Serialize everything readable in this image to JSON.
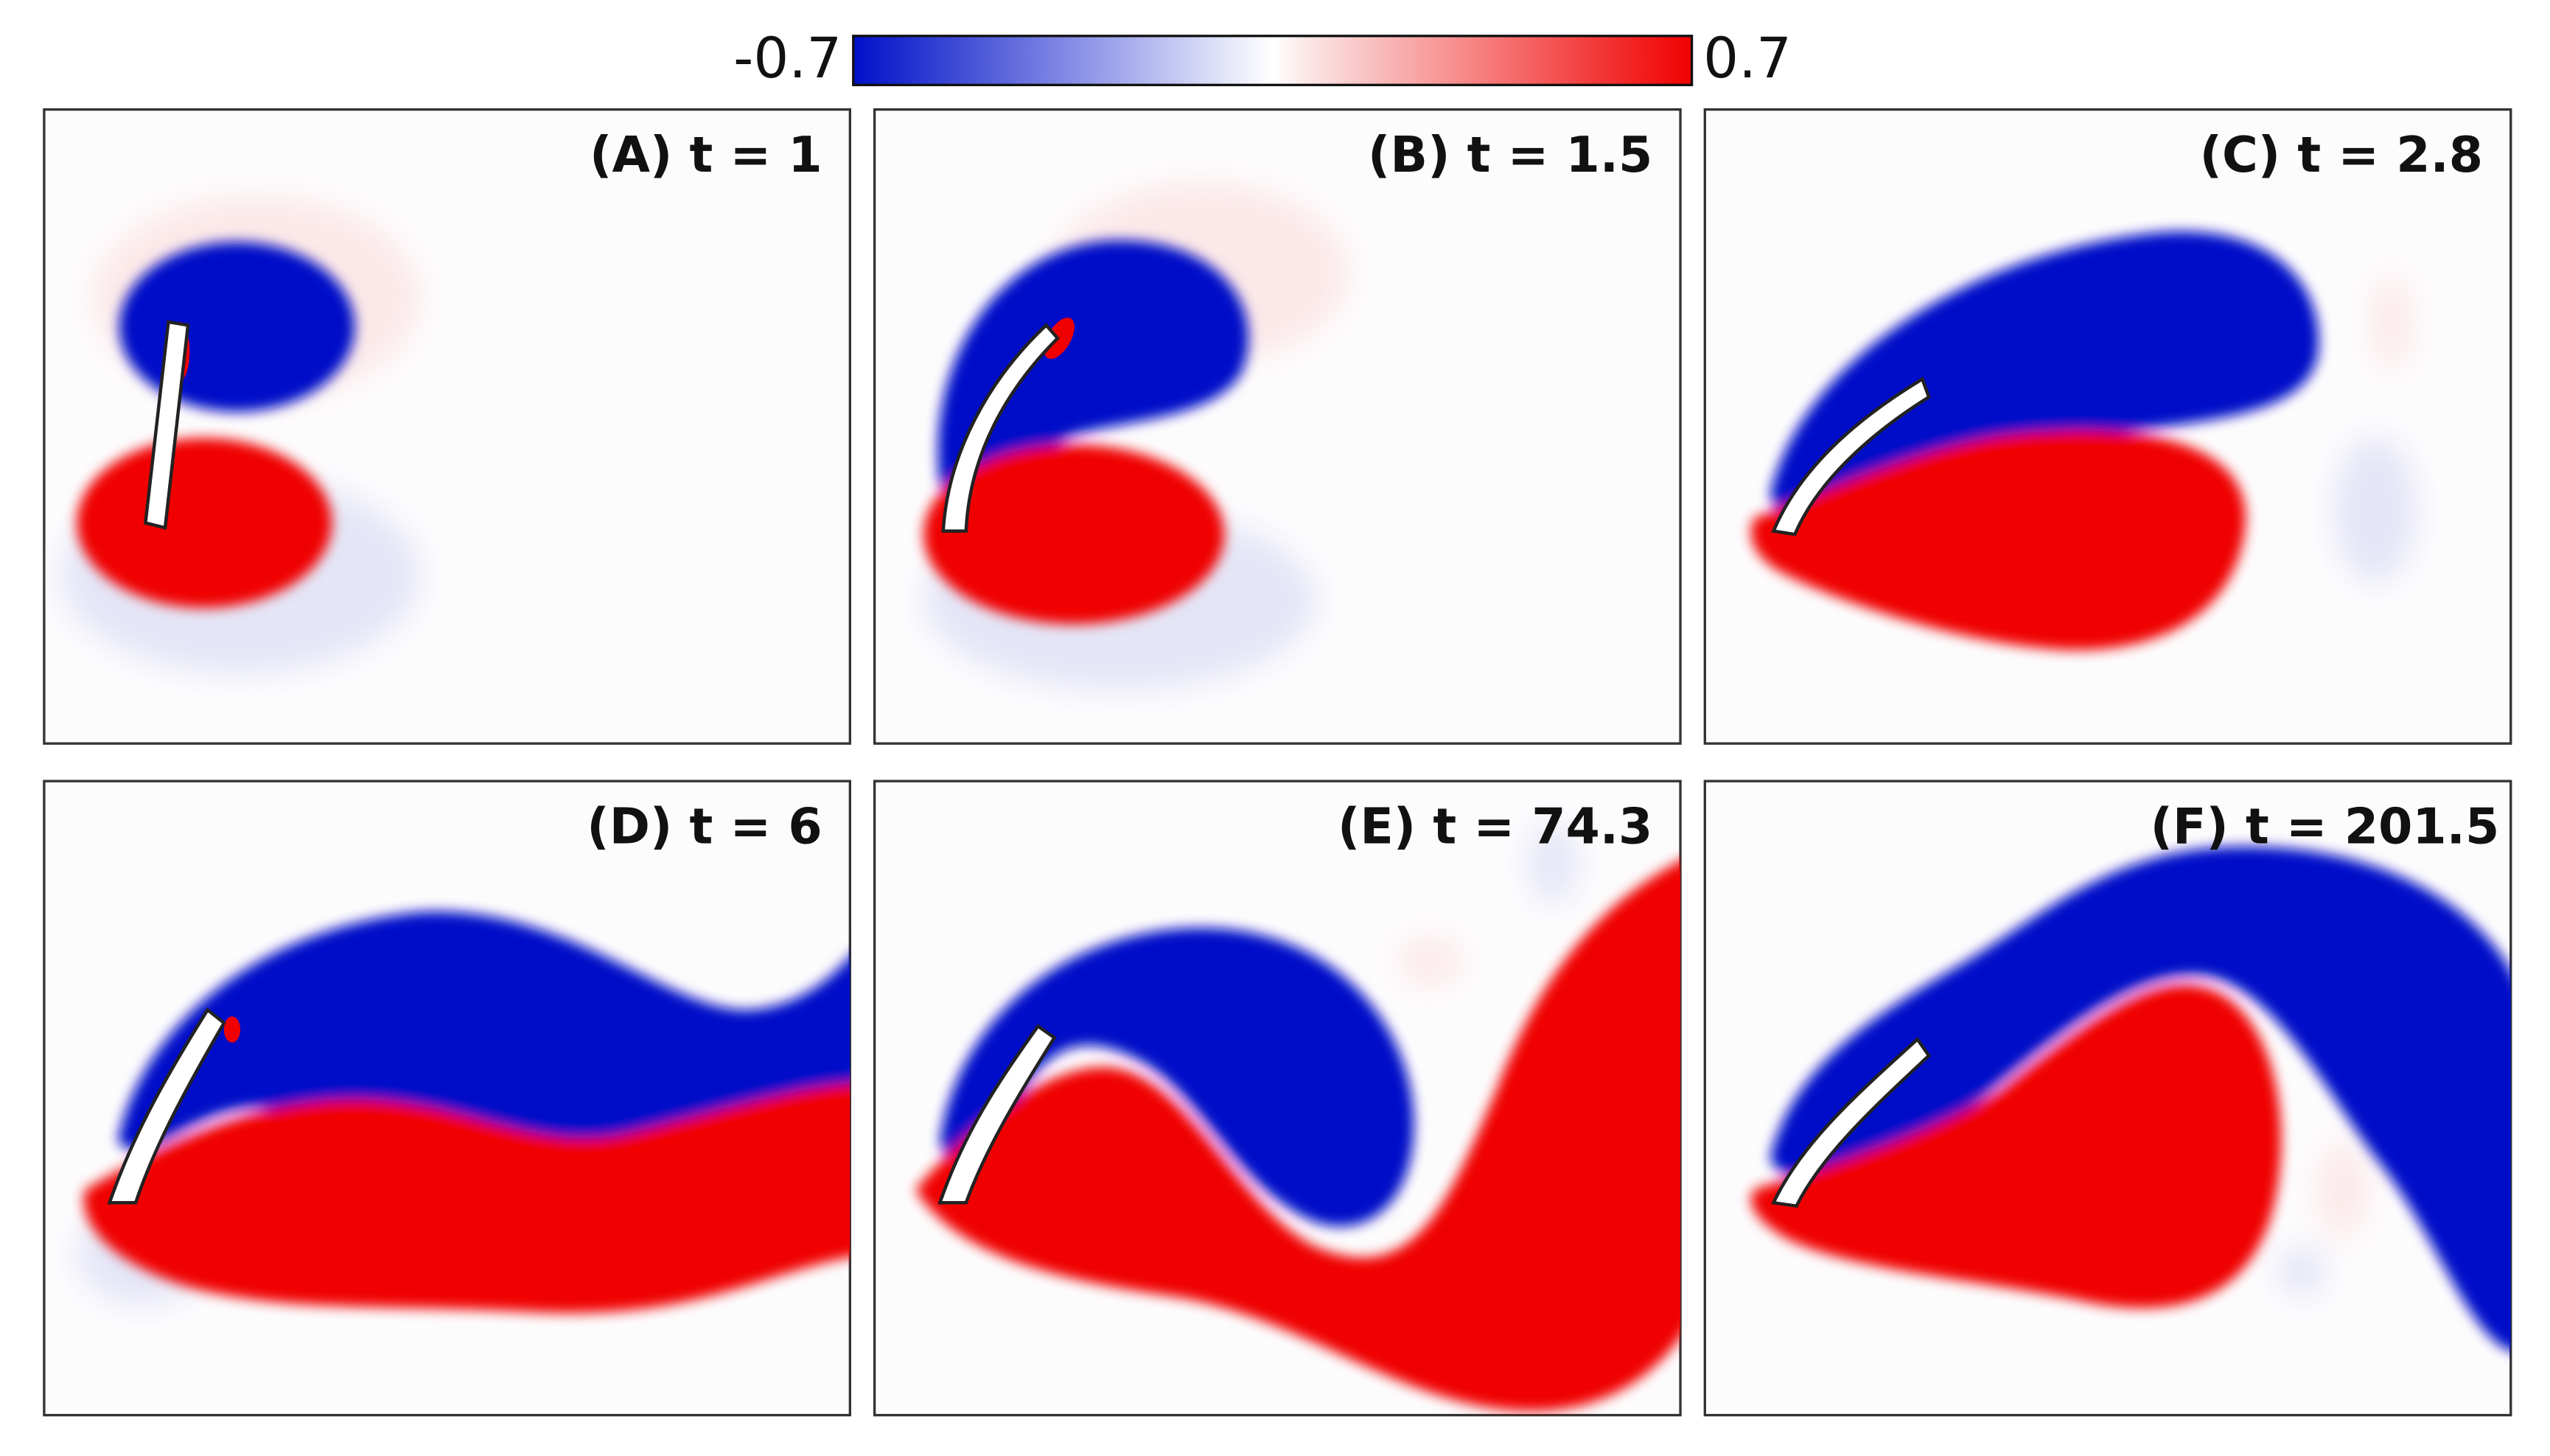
{
  "colorbar": {
    "min_label": "-0.7",
    "max_label": "0.7"
  },
  "panels": [
    {
      "label": "(A) t = 1"
    },
    {
      "label": "(B) t = 1.5"
    },
    {
      "label": "(C) t = 2.8"
    },
    {
      "label": "(D) t = 6"
    },
    {
      "label": "(E) t = 74.3"
    },
    {
      "label": "(F) t = 201.5"
    }
  ]
}
